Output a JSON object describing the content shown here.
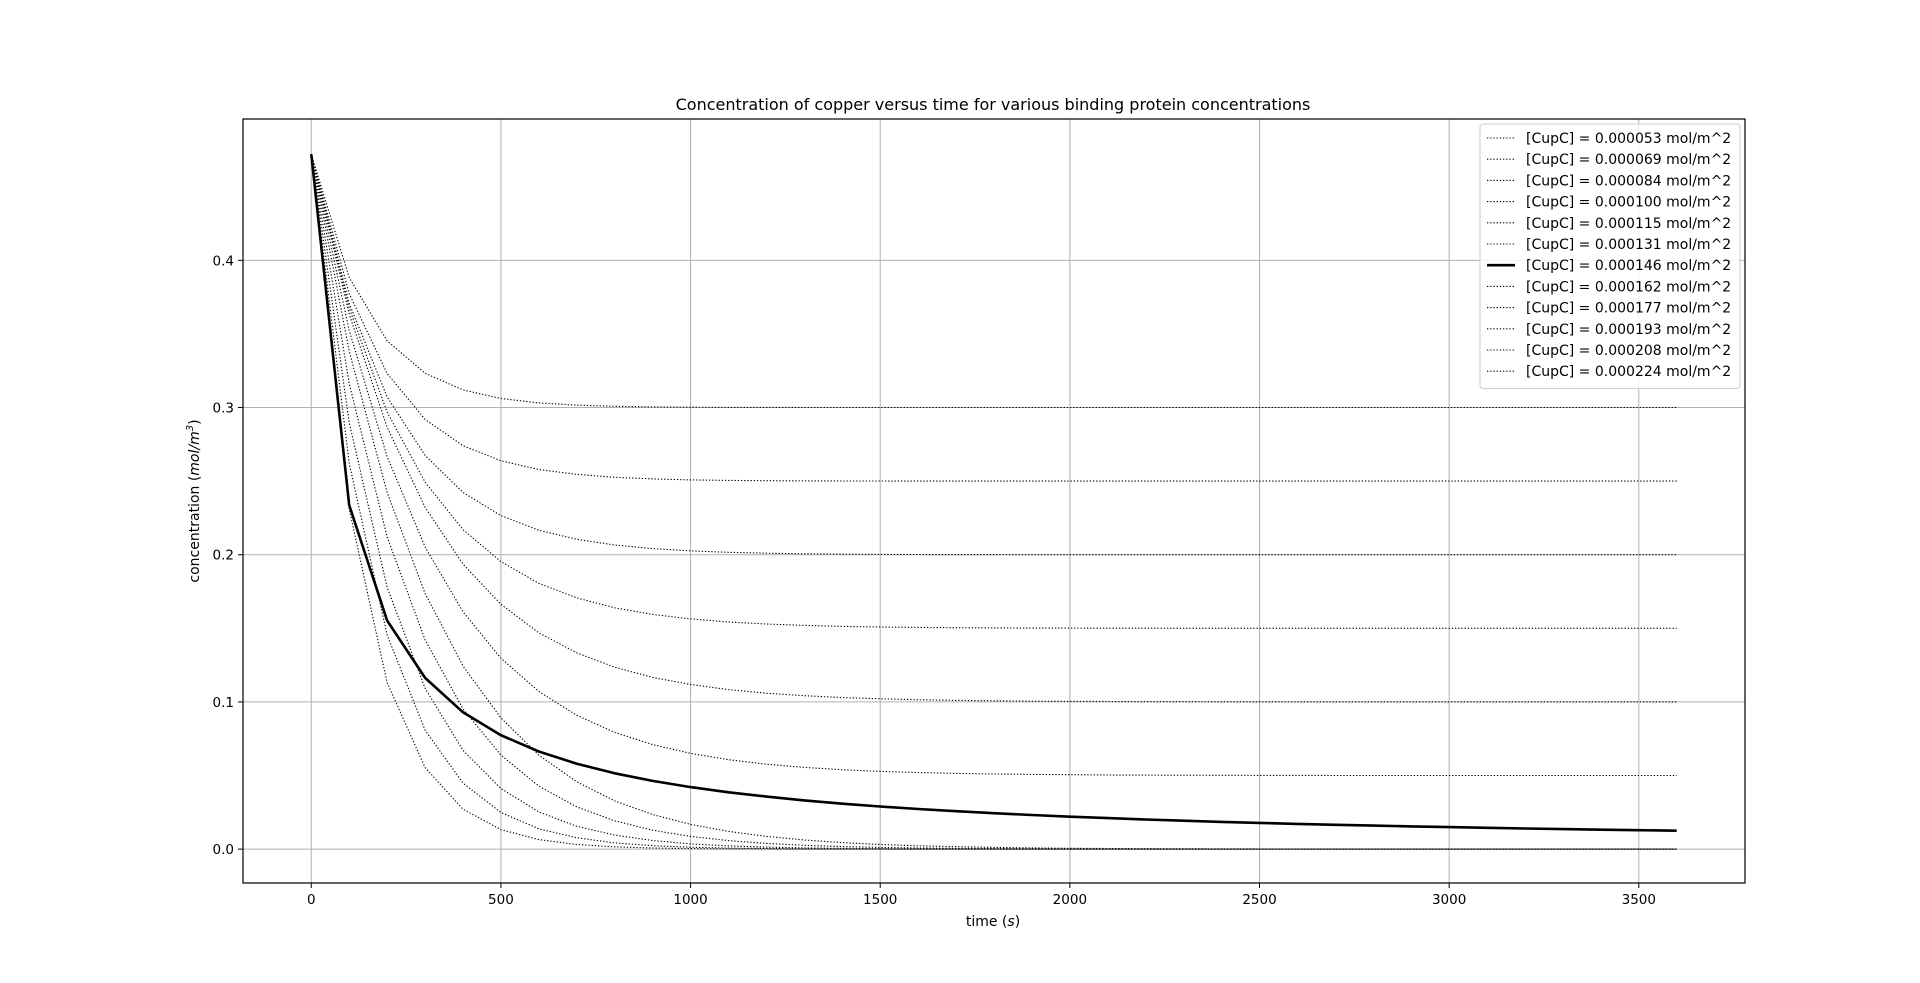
{
  "chart_data": {
    "type": "line",
    "title": "Concentration of copper versus time for various binding protein concentrations",
    "xlabel": "time (s)",
    "ylabel": "concentration (mol/m3)",
    "xlabel_parts": {
      "pre": "time (",
      "ital": "s",
      "post": ")"
    },
    "ylabel_parts": {
      "pre": "concentration (",
      "ital": "mol/m",
      "sup": "3",
      "post": ")"
    },
    "xlim": [
      -180,
      3780
    ],
    "ylim": [
      -0.023,
      0.496
    ],
    "xticks": [
      0,
      500,
      1000,
      1500,
      2000,
      2500,
      3000,
      3500
    ],
    "yticks": [
      0.0,
      0.1,
      0.2,
      0.3,
      0.4
    ],
    "ytick_labels": [
      "0.0",
      "0.1",
      "0.2",
      "0.3",
      "0.4"
    ],
    "grid": true,
    "legend_position": "top-right",
    "x_range": [
      0,
      3600
    ],
    "initial_value": 0.472,
    "series": [
      {
        "name": "[CupC] = 0.000053 mol/m^2",
        "style": "dotted",
        "asymptote": 0.3,
        "tau": 150
      },
      {
        "name": "[CupC] = 0.000069 mol/m^2",
        "style": "dotted",
        "asymptote": 0.25,
        "tau": 180
      },
      {
        "name": "[CupC] = 0.000084 mol/m^2",
        "style": "dotted",
        "asymptote": 0.2,
        "tau": 215
      },
      {
        "name": "[CupC] = 0.000100 mol/m^2",
        "style": "dotted",
        "asymptote": 0.15,
        "tau": 255
      },
      {
        "name": "[CupC] = 0.000115 mol/m^2",
        "style": "dotted",
        "asymptote": 0.1,
        "tau": 290
      },
      {
        "name": "[CupC] = 0.000131 mol/m^2",
        "style": "dotted",
        "asymptote": 0.05,
        "tau": 300
      },
      {
        "name": "[CupC] = 0.000146 mol/m^2",
        "style": "solid",
        "asymptote": 0.0,
        "tau": 0,
        "kind": "second-order",
        "k": 0.00045
      },
      {
        "name": "[CupC] = 0.000162 mol/m^2",
        "style": "dotted",
        "asymptote": 0.0,
        "tau": 300
      },
      {
        "name": "[CupC] = 0.000177 mol/m^2",
        "style": "dotted",
        "asymptote": 0.0,
        "tau": 250
      },
      {
        "name": "[CupC] = 0.000193 mol/m^2",
        "style": "dotted",
        "asymptote": 0.0,
        "tau": 205
      },
      {
        "name": "[CupC] = 0.000208 mol/m^2",
        "style": "dotted",
        "asymptote": 0.0,
        "tau": 170
      },
      {
        "name": "[CupC] = 0.000224 mol/m^2",
        "style": "dotted",
        "asymptote": 0.0,
        "tau": 140
      }
    ]
  }
}
